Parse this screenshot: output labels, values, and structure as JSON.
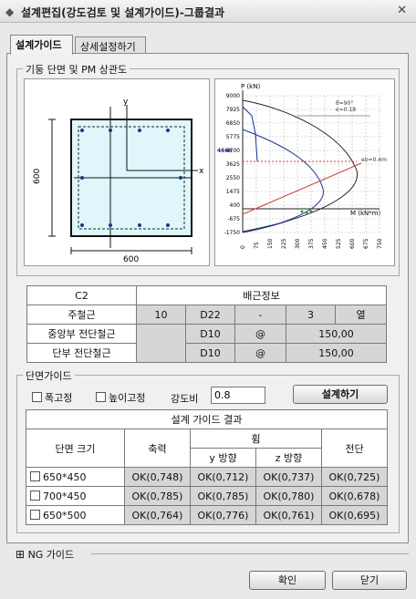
{
  "window": {
    "title": "설계편집(강도검토 및 설계가이드)-그룹결과",
    "close_glyph": "✕"
  },
  "tabs": [
    "설계가이드",
    "상세설정하기"
  ],
  "section_pm": {
    "title": "기둥 단면 및 PM 상관도"
  },
  "section_drawing": {
    "width_label": "600",
    "height_label": "600",
    "axis_x": "x",
    "axis_y": "y"
  },
  "pm_chart": {
    "ylabel": "P (kN)",
    "xlabel": "M (kN*m)",
    "y_ticks": [
      "9000",
      "7925",
      "6850",
      "5775",
      "4700",
      "3625",
      "2550",
      "1475",
      "400",
      "-675",
      "-1750"
    ],
    "highlight_y": "4666",
    "x_ticks": [
      "0",
      "75",
      "150",
      "225",
      "300",
      "375",
      "450",
      "525",
      "600",
      "675",
      "750"
    ],
    "annotation_top": "θ=90°",
    "annotation_top2": "e=0.18",
    "annotation_mid": "eb=0.4m"
  },
  "rebar_table": {
    "id": "C2",
    "header": "배근정보",
    "rows": [
      {
        "label": "주철근",
        "cells": [
          "10",
          "D22",
          "-",
          "3",
          "열"
        ]
      },
      {
        "label": "중앙부 전단철근",
        "cells": [
          "D10",
          "@",
          "150,00"
        ]
      },
      {
        "label": "단부 전단철근",
        "cells": [
          "D10",
          "@",
          "150,00"
        ]
      }
    ]
  },
  "section_guide": {
    "title": "단면가이드",
    "fix_width": "폭고정",
    "fix_height": "높이고정",
    "strength_ratio_label": "강도비",
    "strength_ratio_value": "0.8",
    "design_button": "설계하기"
  },
  "result_table": {
    "title": "설계 가이드 결과",
    "col_size": "단면 크기",
    "col_axial": "축력",
    "col_bending": "휨",
    "col_y": "y 방향",
    "col_z": "z 방향",
    "col_shear": "전단",
    "rows": [
      {
        "size": "650*450",
        "axial": "OK(0,748)",
        "y": "OK(0,712)",
        "z": "OK(0,737)",
        "shear": "OK(0,725)"
      },
      {
        "size": "700*450",
        "axial": "OK(0,785)",
        "y": "OK(0,785)",
        "z": "OK(0,780)",
        "shear": "OK(0,678)"
      },
      {
        "size": "650*500",
        "axial": "OK(0,764)",
        "y": "OK(0,776)",
        "z": "OK(0,761)",
        "shear": "OK(0,695)"
      }
    ]
  },
  "ng_guide": {
    "label": "NG 가이드",
    "glyph": "⊞"
  },
  "footer": {
    "ok": "확인",
    "close": "닫기"
  }
}
